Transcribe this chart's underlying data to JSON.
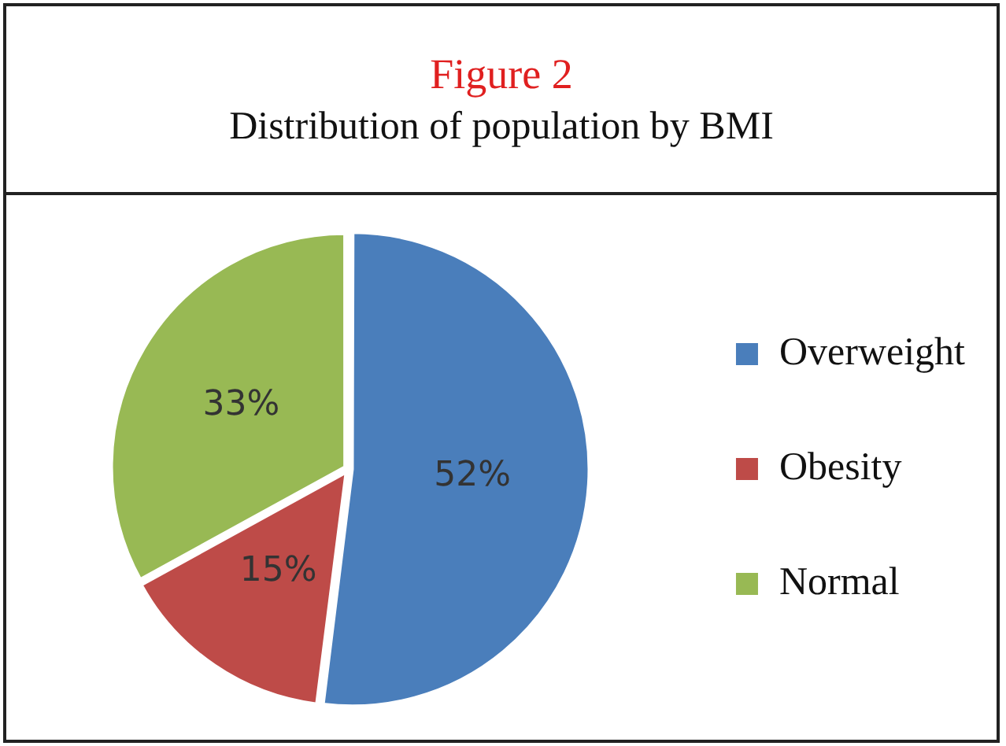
{
  "chart_data": {
    "type": "pie",
    "title": "Figure 2",
    "subtitle": "Distribution of population by BMI",
    "categories": [
      "Overweight",
      "Obesity",
      "Normal"
    ],
    "values": [
      52,
      15,
      33
    ],
    "colors": [
      "#4a7ebb",
      "#be4b48",
      "#98b954"
    ],
    "value_labels": [
      "52%",
      "15%",
      "33%"
    ],
    "legend": "right"
  }
}
